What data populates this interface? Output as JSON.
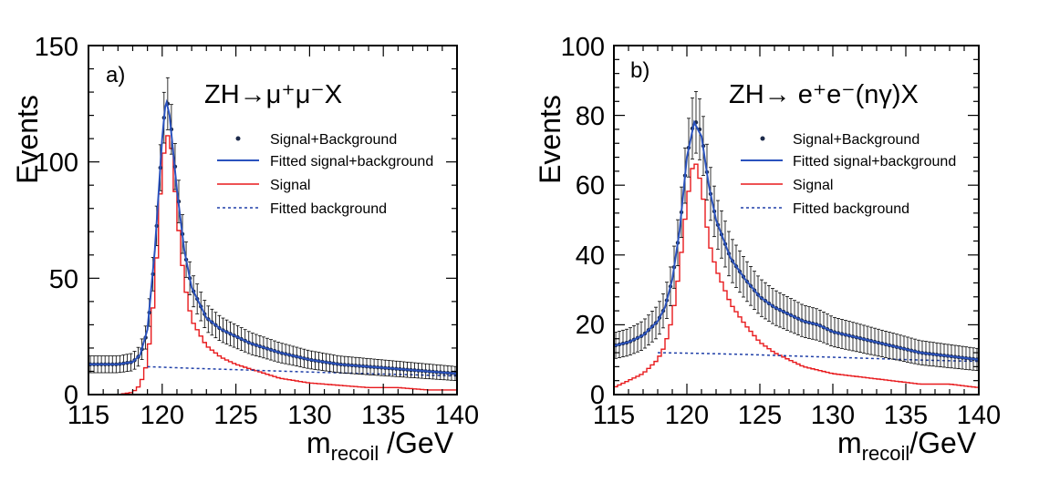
{
  "panels": [
    {
      "id": "a",
      "panel_label": "a)",
      "title_parts": {
        "pre": "ZH",
        "post": "μ⁺μ⁻X"
      },
      "y_axis_label": "Events",
      "x_axis_label_main": "m",
      "x_axis_label_sub": "recoil",
      "x_axis_label_unit": " /GeV",
      "y_ticks": [
        "0",
        "50",
        "100",
        "150"
      ],
      "x_ticks": [
        "115",
        "120",
        "125",
        "130",
        "135",
        "140"
      ]
    },
    {
      "id": "b",
      "panel_label": "b)",
      "title_parts": {
        "pre": "ZH",
        "post": " e⁺e⁻(nγ)X"
      },
      "y_axis_label": "Events",
      "x_axis_label_main": "m",
      "x_axis_label_sub": "recoil",
      "x_axis_label_unit": "/GeV",
      "y_ticks": [
        "0",
        "20",
        "40",
        "60",
        "80",
        "100"
      ],
      "x_ticks": [
        "115",
        "120",
        "125",
        "130",
        "135",
        "140"
      ]
    }
  ],
  "legend": [
    {
      "label": "Signal+Background",
      "style": "marker"
    },
    {
      "label": "Fitted signal+background",
      "style": "solid",
      "color": "#2a52be"
    },
    {
      "label": "Signal",
      "style": "solid",
      "color": "#e8191c"
    },
    {
      "label": "Fitted background",
      "style": "dashed",
      "color": "#1f3fa8"
    }
  ],
  "colors": {
    "signal": "#e8191c",
    "fit": "#2a52be",
    "background_fit": "#1f3fa8",
    "points": "#1c2a4a"
  },
  "chart_data": [
    {
      "type": "line",
      "panel": "a",
      "xlabel": "m_recoil /GeV",
      "ylabel": "Events",
      "xlim": [
        115,
        140
      ],
      "ylim": [
        0,
        150
      ],
      "grid": false,
      "legend_placement": "right",
      "series": [
        {
          "name": "Signal+Background",
          "x": [
            115,
            117,
            118,
            118.5,
            119,
            119.5,
            120,
            120.25,
            120.5,
            121,
            121.5,
            122,
            123,
            124,
            125,
            126,
            127,
            128,
            130,
            132,
            134,
            136,
            138,
            140
          ],
          "y": [
            13,
            13,
            14,
            17,
            27,
            60,
            110,
            128,
            122,
            90,
            62,
            46,
            33,
            28,
            25,
            22,
            20,
            18,
            15,
            13,
            12,
            11,
            10,
            9
          ]
        },
        {
          "name": "Fitted signal+background",
          "x": [
            115,
            117,
            118,
            118.5,
            119,
            119.5,
            120,
            120.25,
            120.5,
            121,
            121.5,
            122,
            123,
            124,
            125,
            126,
            127,
            128,
            130,
            132,
            134,
            136,
            138,
            140
          ],
          "y": [
            13,
            13,
            14,
            17,
            28,
            62,
            110,
            127,
            120,
            88,
            62,
            46,
            33,
            28,
            25,
            22,
            20,
            18,
            15,
            13,
            12,
            11,
            10,
            9
          ]
        },
        {
          "name": "Signal",
          "x": [
            115,
            117,
            118,
            118.5,
            119,
            119.5,
            120,
            120.5,
            121,
            121.5,
            122,
            123,
            124,
            125,
            126,
            127,
            128,
            130,
            132,
            134,
            136,
            138,
            140
          ],
          "y": [
            0,
            0,
            1,
            4,
            14,
            45,
            100,
            115,
            78,
            48,
            32,
            21,
            16,
            13,
            11,
            9,
            7,
            5,
            4,
            3,
            3,
            2,
            2
          ]
        },
        {
          "name": "Fitted background",
          "x": [
            119,
            122,
            125,
            128,
            131,
            134,
            137,
            140
          ],
          "y": [
            12,
            11.3,
            10.7,
            10.1,
            9.5,
            9.0,
            8.5,
            8.0
          ]
        }
      ]
    },
    {
      "type": "line",
      "panel": "b",
      "xlabel": "m_recoil/GeV",
      "ylabel": "Events",
      "xlim": [
        115,
        140
      ],
      "ylim": [
        0,
        100
      ],
      "grid": false,
      "legend_placement": "right",
      "series": [
        {
          "name": "Signal+Background",
          "x": [
            115,
            116,
            117,
            118,
            118.5,
            119,
            119.5,
            120,
            120.5,
            121,
            121.5,
            122,
            123,
            124,
            125,
            126,
            127,
            128,
            129,
            130,
            132,
            134,
            136,
            138,
            140
          ],
          "y": [
            14,
            15,
            17,
            21,
            25,
            33,
            47,
            68,
            79,
            75,
            60,
            50,
            39,
            33,
            28,
            25,
            23,
            21,
            20,
            18,
            16,
            14,
            12,
            11,
            10
          ]
        },
        {
          "name": "Fitted signal+background",
          "x": [
            115,
            116,
            117,
            118,
            118.5,
            119,
            119.5,
            120,
            120.5,
            121,
            121.5,
            122,
            123,
            124,
            125,
            126,
            127,
            128,
            129,
            130,
            132,
            134,
            136,
            138,
            140
          ],
          "y": [
            14,
            15,
            17,
            21,
            25,
            33,
            47,
            68,
            78,
            74,
            60,
            50,
            39,
            33,
            28,
            25,
            23,
            21,
            20,
            18,
            16,
            14,
            12,
            11,
            10
          ]
        },
        {
          "name": "Signal",
          "x": [
            115,
            116,
            117,
            118,
            118.5,
            119,
            119.5,
            120,
            120.5,
            121,
            121.5,
            122,
            123,
            124,
            125,
            126,
            127,
            128,
            130,
            132,
            134,
            136,
            138,
            140
          ],
          "y": [
            2,
            4,
            6,
            10,
            14,
            22,
            36,
            55,
            68,
            60,
            44,
            36,
            26,
            20,
            15,
            12,
            10,
            8,
            6,
            5,
            4,
            3,
            3,
            2
          ]
        },
        {
          "name": "Fitted background",
          "x": [
            118,
            121,
            124,
            127,
            130,
            133,
            136,
            140
          ],
          "y": [
            12,
            11.8,
            11.5,
            11.1,
            10.7,
            10.3,
            9.9,
            9.5
          ]
        }
      ]
    }
  ]
}
